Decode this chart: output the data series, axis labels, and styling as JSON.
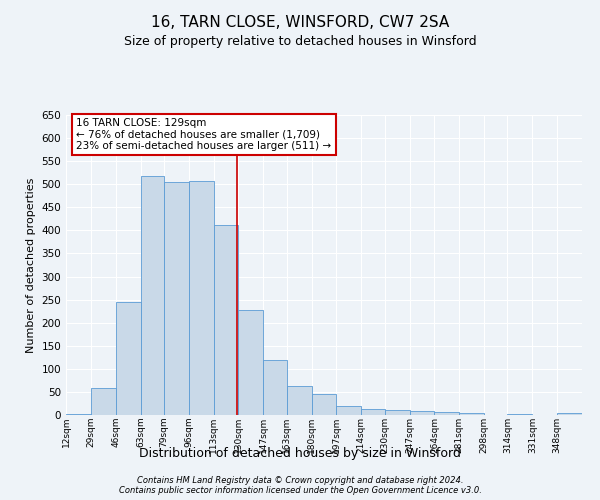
{
  "title": "16, TARN CLOSE, WINSFORD, CW7 2SA",
  "subtitle": "Size of property relative to detached houses in Winsford",
  "xlabel": "Distribution of detached houses by size in Winsford",
  "ylabel": "Number of detached properties",
  "footer1": "Contains HM Land Registry data © Crown copyright and database right 2024.",
  "footer2": "Contains public sector information licensed under the Open Government Licence v3.0.",
  "annotation_line1": "16 TARN CLOSE: 129sqm",
  "annotation_line2": "← 76% of detached houses are smaller (1,709)",
  "annotation_line3": "23% of semi-detached houses are larger (511) →",
  "bin_edges": [
    12,
    29,
    46,
    63,
    79,
    96,
    113,
    130,
    147,
    163,
    180,
    197,
    214,
    230,
    247,
    264,
    281,
    298,
    314,
    331,
    348
  ],
  "bin_labels": [
    "12sqm",
    "29sqm",
    "46sqm",
    "63sqm",
    "79sqm",
    "96sqm",
    "113sqm",
    "130sqm",
    "147sqm",
    "163sqm",
    "180sqm",
    "197sqm",
    "214sqm",
    "230sqm",
    "247sqm",
    "264sqm",
    "281sqm",
    "298sqm",
    "314sqm",
    "331sqm",
    "348sqm"
  ],
  "bar_values": [
    3,
    58,
    245,
    517,
    505,
    507,
    412,
    228,
    120,
    62,
    46,
    20,
    12,
    10,
    8,
    6,
    5,
    1,
    3,
    0,
    5
  ],
  "bar_color": "#c9d9e8",
  "bar_edge_color": "#5b9bd5",
  "bg_color": "#eef3f8",
  "grid_color": "#ffffff",
  "vline_color": "#cc0000",
  "vline_x": 129,
  "ylim": [
    0,
    650
  ],
  "yticks": [
    0,
    50,
    100,
    150,
    200,
    250,
    300,
    350,
    400,
    450,
    500,
    550,
    600,
    650
  ],
  "title_fontsize": 11,
  "subtitle_fontsize": 9,
  "annotation_fontsize": 7.5,
  "annotation_box_color": "#ffffff",
  "annotation_box_edge": "#cc0000",
  "footer_fontsize": 6,
  "ylabel_fontsize": 8,
  "xlabel_fontsize": 9,
  "ytick_fontsize": 7.5,
  "xtick_fontsize": 6.5
}
